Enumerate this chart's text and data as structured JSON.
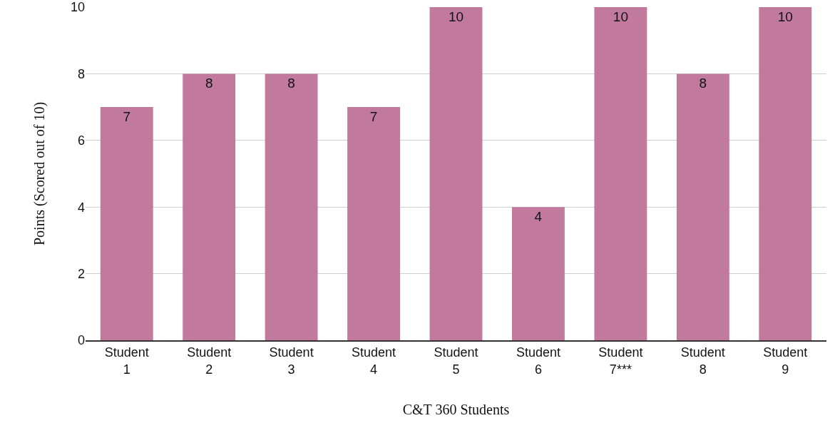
{
  "chart_data": {
    "type": "bar",
    "xlabel": "C&T 360 Students",
    "ylabel": "Points (Scored out of 10)",
    "categories": [
      "Student\n1",
      "Student\n2",
      "Student\n3",
      "Student\n4",
      "Student\n5",
      "Student\n6",
      "Student\n7***",
      "Student\n8",
      "Student\n9"
    ],
    "values": [
      7,
      8,
      8,
      7,
      10,
      4,
      10,
      8,
      10
    ],
    "color": "#c17a9e",
    "ylim": [
      0,
      10
    ],
    "yticks": [
      0,
      2,
      4,
      6,
      8,
      10
    ],
    "grid": "y",
    "data_labels": true,
    "legend": false
  }
}
